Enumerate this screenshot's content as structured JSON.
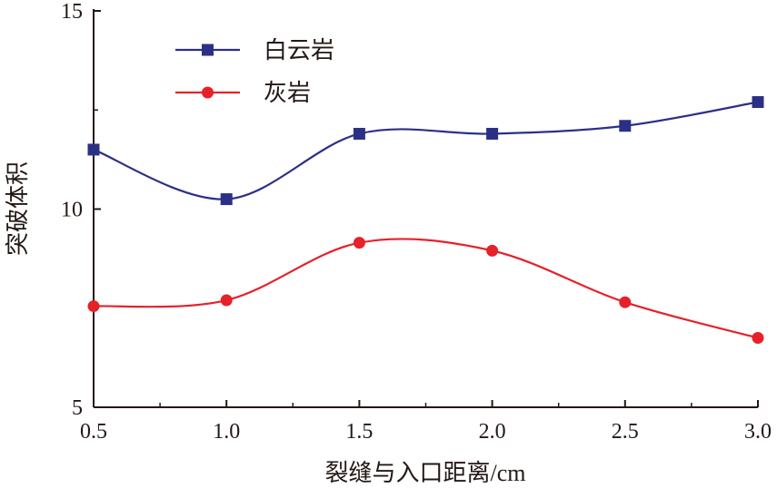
{
  "chart_data": {
    "type": "line",
    "xlabel": "裂缝与入口距离/cm",
    "ylabel": "突破体积",
    "x": [
      "0.5",
      "1.0",
      "1.5",
      "2.0",
      "2.5",
      "3.0"
    ],
    "xlim": [
      0.5,
      3.0
    ],
    "ylim": [
      5,
      15
    ],
    "y_ticks": [
      "5",
      "10",
      "15"
    ],
    "grid": false,
    "legend_position": "top-left",
    "smooth": true,
    "series": [
      {
        "name": "白云岩",
        "values": [
          11.5,
          10.25,
          11.9,
          11.9,
          12.1,
          12.7
        ],
        "color": "#2b3087",
        "marker": "square"
      },
      {
        "name": "灰岩",
        "values": [
          7.55,
          7.7,
          9.15,
          8.95,
          7.65,
          6.75
        ],
        "color": "#e6212a",
        "marker": "circle"
      }
    ]
  }
}
